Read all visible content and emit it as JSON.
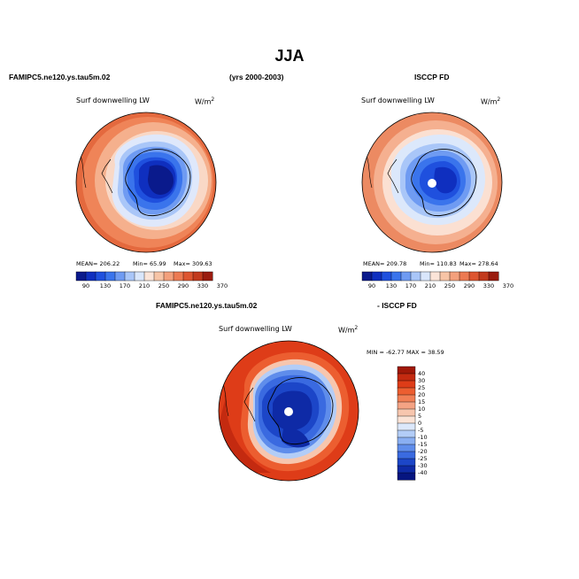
{
  "figure": {
    "title": "JJA",
    "left_header": "FAMIPC5.ne120.ys.tau5m.02",
    "period": "(yrs 2000-2003)",
    "right_header": "ISCCP FD",
    "diff_header_left": "FAMIPC5.ne120.ys.tau5m.02",
    "diff_header_right": "- ISCCP FD"
  },
  "panels": {
    "model": {
      "variable": "Surf downwelling LW",
      "units": "W/m",
      "units_sup": "2",
      "mean_label": "MEAN= 206.22",
      "min_label": "Min=  65.99",
      "max_label": "Max= 309.63"
    },
    "obs": {
      "variable": "Surf downwelling LW",
      "units": "W/m",
      "units_sup": "2",
      "mean_label": "MEAN= 209.78",
      "min_label": "Min= 110.83",
      "max_label": "Max= 278.64"
    },
    "diff": {
      "variable": "Surf downwelling LW",
      "units": "W/m",
      "units_sup": "2",
      "minmax_label": "MIN = -62.77  MAX =  38.59"
    }
  },
  "colorbars": {
    "abs_ticks": [
      "90",
      "130",
      "170",
      "210",
      "250",
      "290",
      "330",
      "370"
    ],
    "abs_colors": [
      "#0a1a8c",
      "#0f2fbf",
      "#1f50de",
      "#3a74ec",
      "#6f9bf2",
      "#a9c6f8",
      "#d9e6fb",
      "#fbe4d8",
      "#f7c4a6",
      "#f3a07c",
      "#ec7a52",
      "#dd5530",
      "#c23a1d",
      "#9a1c0f"
    ],
    "diff_ticks": [
      "40",
      "30",
      "25",
      "20",
      "15",
      "10",
      "5",
      "0",
      "-5",
      "-10",
      "-15",
      "-20",
      "-25",
      "-30",
      "-40"
    ],
    "diff_colors": [
      "#a01808",
      "#c42a10",
      "#de3c18",
      "#ec5e30",
      "#f17f55",
      "#f4a384",
      "#f7c6ae",
      "#fbe3d6",
      "#dce8fb",
      "#b3cdf7",
      "#8aaff2",
      "#5f8deb",
      "#3a6ae0",
      "#1c46c8",
      "#0e2aa6",
      "#061580"
    ]
  }
}
